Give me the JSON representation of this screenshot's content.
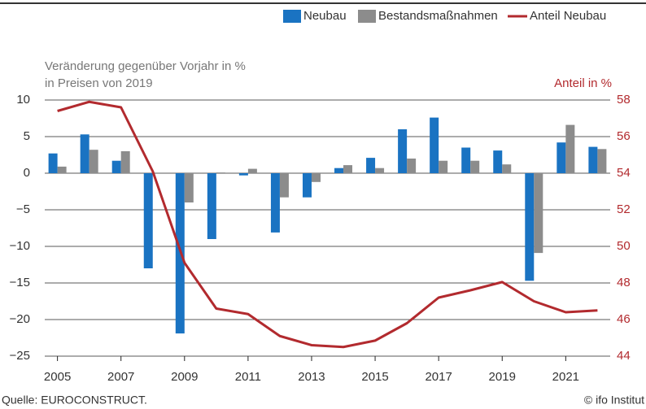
{
  "chart_data": {
    "type": "bar_line",
    "y_axis_label": [
      "Veränderung gegenüber Vorjahr in %",
      "in Preisen von 2019"
    ],
    "y2_axis_label": "Anteil in %",
    "source": "Quelle: EUROCONSTRUCT.",
    "credit": "© ifo Institut",
    "x": [
      2005,
      2006,
      2007,
      2008,
      2009,
      2010,
      2011,
      2012,
      2013,
      2014,
      2015,
      2016,
      2017,
      2018,
      2019,
      2020,
      2021,
      2022
    ],
    "xlim": [
      2004.6,
      2022.4
    ],
    "xticks": [
      2005,
      2007,
      2009,
      2011,
      2013,
      2015,
      2017,
      2019,
      2021
    ],
    "ylim": [
      -25,
      10
    ],
    "yticks": [
      {
        "value": -25,
        "label": "−25"
      },
      {
        "value": -20,
        "label": "−20"
      },
      {
        "value": -15,
        "label": "−15"
      },
      {
        "value": -10,
        "label": "−10"
      },
      {
        "value": -5,
        "label": "−5"
      },
      0,
      5,
      10
    ],
    "y2lim": [
      44,
      58
    ],
    "y2ticks": [
      44,
      46,
      48,
      50,
      52,
      54,
      56,
      58
    ],
    "grid": true,
    "legend": "top-right",
    "series": [
      {
        "name": "Neubau",
        "type": "bar",
        "color": "#1a73c2",
        "values": [
          2.7,
          5.3,
          1.7,
          -13,
          -21.9,
          -9,
          -0.3,
          -8.1,
          -3.3,
          0.7,
          2.1,
          6,
          7.6,
          3.5,
          3.1,
          -14.7,
          4.2,
          3.6
        ]
      },
      {
        "name": "Bestandsmaßnahmen",
        "type": "bar",
        "color": "#8c8c8c",
        "values": [
          0.9,
          3.2,
          3,
          0,
          -4,
          0.1,
          0.6,
          -3.3,
          -1.2,
          1.1,
          0.7,
          2,
          1.7,
          1.7,
          1.2,
          -10.9,
          6.6,
          3.3
        ]
      },
      {
        "name": "Anteil Neubau",
        "type": "line",
        "axis": "y2",
        "color": "#b22a2e",
        "values": [
          57.4,
          57.9,
          57.6,
          54.1,
          49.1,
          46.6,
          46.3,
          45.1,
          44.6,
          44.5,
          44.85,
          45.8,
          47.2,
          47.6,
          48.05,
          47.0,
          46.4,
          46.5
        ]
      }
    ]
  }
}
